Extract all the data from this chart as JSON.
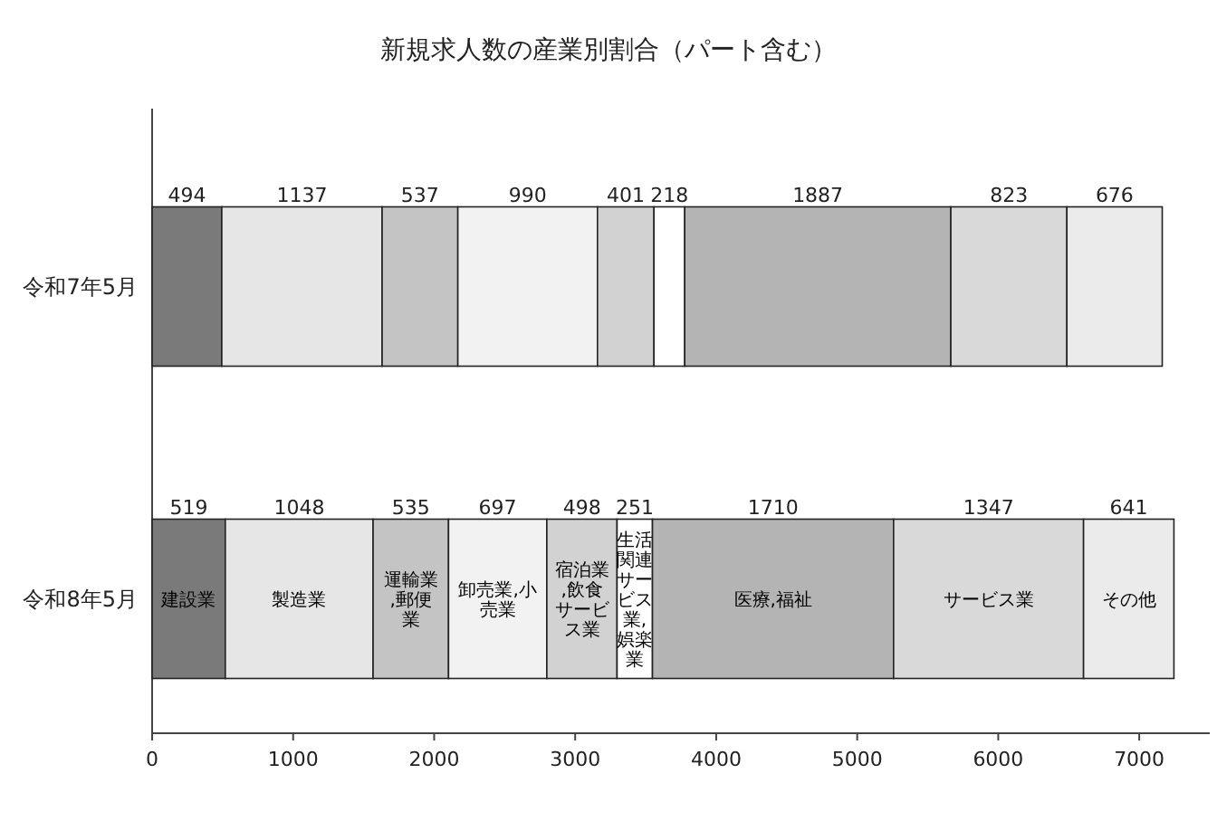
{
  "chart_data": {
    "type": "bar",
    "title": "新規求人数の産業別割合（パート含む）",
    "orientation": "horizontal",
    "stacked": true,
    "data_labels": true,
    "grid": false,
    "legend": false,
    "categories": [
      "令和7年5月",
      "令和8年5月"
    ],
    "xlim": [
      0,
      7500
    ],
    "xticks": [
      0,
      1000,
      2000,
      3000,
      4000,
      5000,
      6000,
      7000
    ],
    "series": [
      {
        "name": "建設業",
        "color": "#7a7a7a",
        "values": [
          494,
          519
        ]
      },
      {
        "name": "製造業",
        "color": "#e6e6e6",
        "values": [
          1137,
          1048
        ]
      },
      {
        "name": "運輸業,郵便業",
        "color": "#c4c4c4",
        "values": [
          537,
          535
        ]
      },
      {
        "name": "卸売業,小売業",
        "color": "#f2f2f2",
        "values": [
          990,
          697
        ]
      },
      {
        "name": "宿泊業,飲食サービス業",
        "color": "#d2d2d2",
        "values": [
          401,
          498
        ]
      },
      {
        "name": "生活関連サービス業,娯楽業",
        "color": "#ffffff",
        "values": [
          218,
          251
        ]
      },
      {
        "name": "医療,福祉",
        "color": "#b4b4b4",
        "values": [
          1887,
          1710
        ]
      },
      {
        "name": "サービス業",
        "color": "#d9d9d9",
        "values": [
          823,
          1347
        ]
      },
      {
        "name": "その他",
        "color": "#ebebeb",
        "values": [
          676,
          641
        ]
      }
    ]
  }
}
